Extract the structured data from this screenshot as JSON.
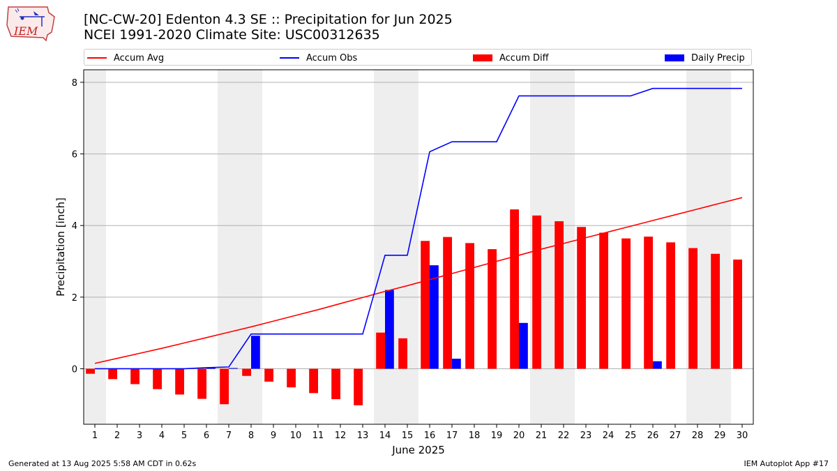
{
  "header": {
    "title_line1": "[NC-CW-20] Edenton 4.3 SE :: Precipitation for Jun 2025",
    "title_line2": "NCEI 1991-2020 Climate Site: USC00312635",
    "logo_text": "IEM"
  },
  "legend": {
    "items": [
      {
        "label": "Accum Avg",
        "color": "#ff0000",
        "kind": "line"
      },
      {
        "label": "Accum Obs",
        "color": "#0000ff",
        "kind": "line"
      },
      {
        "label": "Accum Diff",
        "color": "#ff0000",
        "kind": "bar"
      },
      {
        "label": "Daily Precip",
        "color": "#0000ff",
        "kind": "bar"
      }
    ]
  },
  "footer": {
    "left": "Generated at 13 Aug 2025 5:58 AM CDT in 0.62s",
    "right": "IEM Autoplot App #17"
  },
  "chart_data": {
    "type": "bar",
    "xlabel": "June 2025",
    "ylabel": "Precipitation [inch]",
    "x": [
      1,
      2,
      3,
      4,
      5,
      6,
      7,
      8,
      9,
      10,
      11,
      12,
      13,
      14,
      15,
      16,
      17,
      18,
      19,
      20,
      21,
      22,
      23,
      24,
      25,
      26,
      27,
      28,
      29,
      30
    ],
    "xlim": [
      0.5,
      30.5
    ],
    "ylim": [
      -1.55,
      8.35
    ],
    "yticks": [
      0,
      2,
      4,
      6,
      8
    ],
    "grid": "horizontal",
    "weekend_shading": [
      [
        0.5,
        1.5
      ],
      [
        6.5,
        8.5
      ],
      [
        13.5,
        15.5
      ],
      [
        20.5,
        22.5
      ],
      [
        27.5,
        29.5
      ]
    ],
    "series": [
      {
        "name": "Accum Avg",
        "type": "line",
        "color": "#ff0000",
        "values": [
          0.15,
          0.29,
          0.43,
          0.57,
          0.72,
          0.87,
          1.02,
          1.17,
          1.33,
          1.49,
          1.65,
          1.82,
          1.99,
          2.16,
          2.32,
          2.49,
          2.66,
          2.83,
          3.0,
          3.17,
          3.34,
          3.5,
          3.66,
          3.82,
          3.98,
          4.14,
          4.3,
          4.46,
          4.62,
          4.78
        ]
      },
      {
        "name": "Accum Obs",
        "type": "line",
        "color": "#0000ff",
        "values": [
          0.0,
          0.0,
          0.0,
          0.0,
          0.0,
          0.03,
          0.05,
          0.97,
          0.97,
          0.97,
          0.97,
          0.97,
          0.97,
          3.17,
          3.17,
          6.06,
          6.34,
          6.34,
          6.34,
          7.62,
          7.62,
          7.62,
          7.62,
          7.62,
          7.62,
          7.83,
          7.83,
          7.83,
          7.83,
          7.83
        ]
      },
      {
        "name": "Accum Diff",
        "type": "bar",
        "color": "#ff0000",
        "values": [
          -0.14,
          -0.29,
          -0.43,
          -0.57,
          -0.72,
          -0.84,
          -0.99,
          -0.2,
          -0.36,
          -0.52,
          -0.68,
          -0.85,
          -1.02,
          1.01,
          0.85,
          3.57,
          3.68,
          3.51,
          3.34,
          4.45,
          4.28,
          4.12,
          3.96,
          3.8,
          3.64,
          3.69,
          3.53,
          3.37,
          3.21,
          3.05
        ]
      },
      {
        "name": "Daily Precip",
        "type": "bar",
        "color": "#0000ff",
        "values": [
          0,
          0,
          0,
          0,
          0,
          0.03,
          0.02,
          0.92,
          0,
          0,
          0,
          0,
          0,
          2.2,
          0,
          2.89,
          0.28,
          0,
          0,
          1.28,
          0,
          0,
          0,
          0,
          0,
          0.21,
          0,
          0,
          0,
          0
        ]
      }
    ]
  }
}
